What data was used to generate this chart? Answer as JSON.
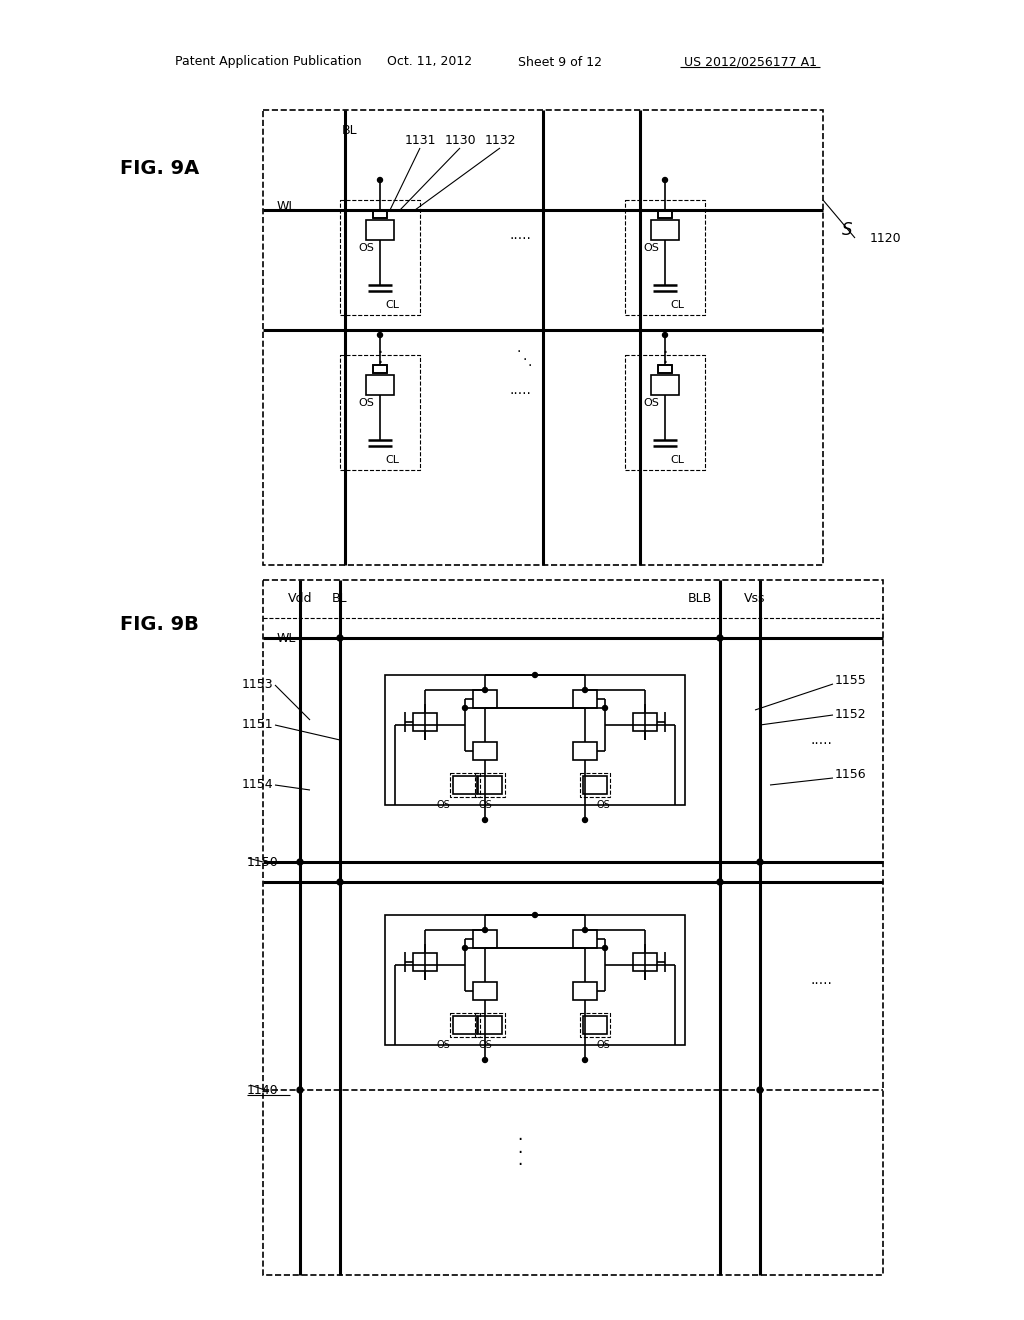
{
  "bg_color": "#ffffff",
  "line_color": "#000000",
  "header_text": "Patent Application Publication",
  "header_date": "Oct. 11, 2012",
  "header_sheet": "Sheet 9 of 12",
  "header_patent": "US 2012/0256177 A1",
  "fig9a_label": "FIG. 9A",
  "fig9b_label": "FIG. 9B"
}
